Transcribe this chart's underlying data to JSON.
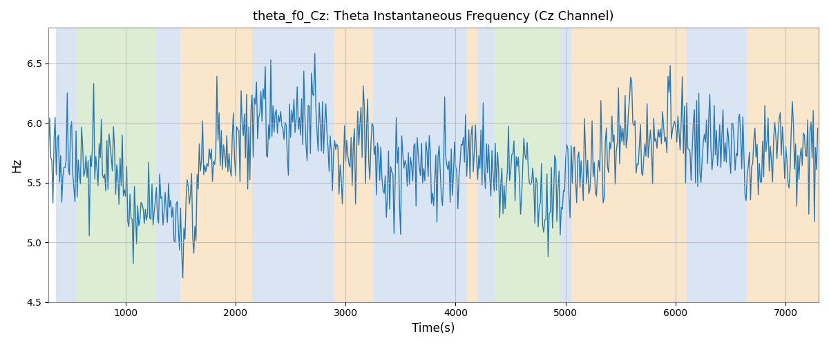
{
  "title": "theta_f0_Cz: Theta Instantaneous Frequency (Cz Channel)",
  "xlabel": "Time(s)",
  "ylabel": "Hz",
  "ylim": [
    4.5,
    6.8
  ],
  "xlim": [
    300,
    7300
  ],
  "background_bands": [
    {
      "xmin": 370,
      "xmax": 560,
      "color": "#aec6e8",
      "alpha": 0.45
    },
    {
      "xmin": 560,
      "xmax": 1280,
      "color": "#b5d9a0",
      "alpha": 0.45
    },
    {
      "xmin": 1280,
      "xmax": 1500,
      "color": "#aec6e8",
      "alpha": 0.45
    },
    {
      "xmin": 1500,
      "xmax": 2150,
      "color": "#f5c98a",
      "alpha": 0.45
    },
    {
      "xmin": 2150,
      "xmax": 2900,
      "color": "#aec6e8",
      "alpha": 0.45
    },
    {
      "xmin": 2900,
      "xmax": 3250,
      "color": "#f5c98a",
      "alpha": 0.45
    },
    {
      "xmin": 3250,
      "xmax": 4100,
      "color": "#aec6e8",
      "alpha": 0.45
    },
    {
      "xmin": 4100,
      "xmax": 4200,
      "color": "#f5c98a",
      "alpha": 0.45
    },
    {
      "xmin": 4200,
      "xmax": 4350,
      "color": "#aec6e8",
      "alpha": 0.45
    },
    {
      "xmin": 4350,
      "xmax": 4950,
      "color": "#b5d9a0",
      "alpha": 0.45
    },
    {
      "xmin": 4950,
      "xmax": 5050,
      "color": "#aec6e8",
      "alpha": 0.45
    },
    {
      "xmin": 5050,
      "xmax": 6100,
      "color": "#f5c98a",
      "alpha": 0.45
    },
    {
      "xmin": 6100,
      "xmax": 6650,
      "color": "#aec6e8",
      "alpha": 0.45
    },
    {
      "xmin": 6650,
      "xmax": 7300,
      "color": "#f5c98a",
      "alpha": 0.45
    }
  ],
  "line_color": "#2878b5",
  "line_width": 1.0,
  "grid_color": "#b0b0b0",
  "grid_alpha": 0.7,
  "seed": 12345,
  "n_points": 7000,
  "x_start": 300,
  "x_end": 7300,
  "yticks": [
    4.5,
    5.0,
    5.5,
    6.0,
    6.5
  ],
  "xticks": [
    1000,
    2000,
    3000,
    4000,
    5000,
    6000,
    7000
  ]
}
